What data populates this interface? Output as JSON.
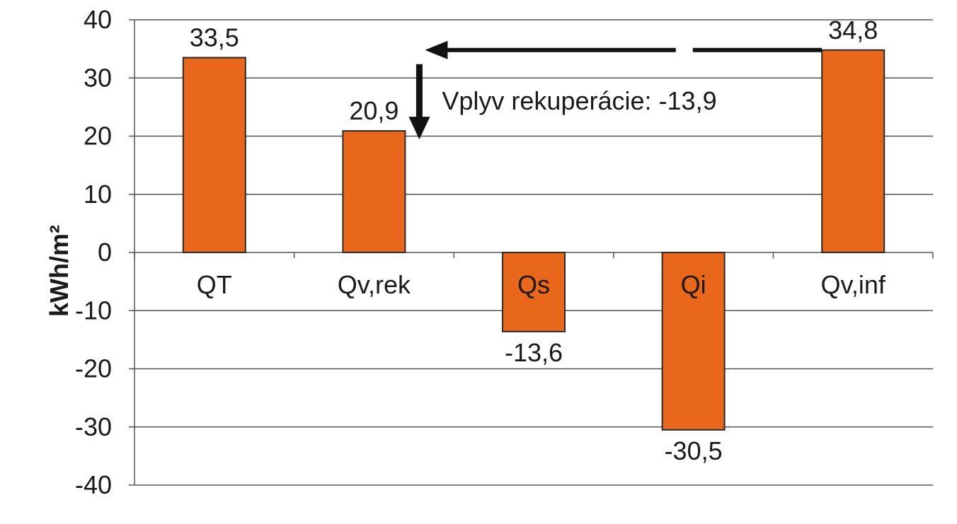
{
  "chart_data": {
    "type": "bar",
    "title": "",
    "xlabel": "",
    "ylabel": "kWh/m²",
    "ylim": [
      -40,
      40
    ],
    "yticks": [
      40,
      30,
      20,
      10,
      0,
      -10,
      -20,
      -30,
      -40
    ],
    "grid": true,
    "legend": "none",
    "bar_color": "#e8671b",
    "categories": [
      "QT",
      "Qv,rek",
      "Qs",
      "Qi",
      "Qv,inf"
    ],
    "values": [
      33.5,
      20.9,
      -13.6,
      -30.5,
      34.8
    ],
    "data_labels": [
      "33,5",
      "20,9",
      "-13,6",
      "-30,5",
      "34,8"
    ],
    "annotation": {
      "text": "Vplyv rekuperácie: -13,9",
      "from_category": "Qv,inf",
      "to_category": "Qv,rek"
    }
  }
}
